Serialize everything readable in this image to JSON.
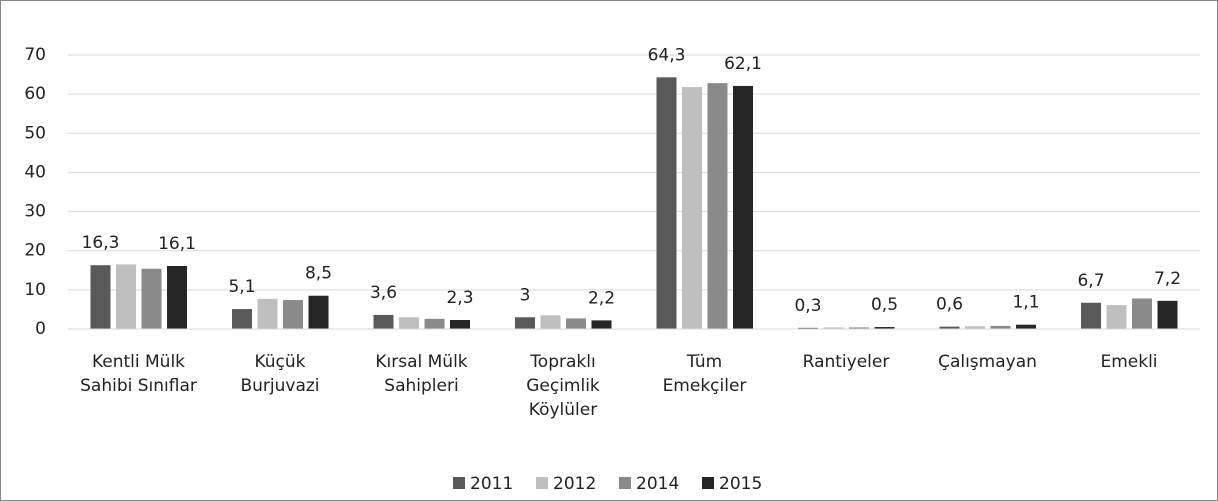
{
  "chart_data": {
    "type": "bar",
    "categories": [
      "Kentli Mülk\nSahibi Sınıflar",
      "Küçük\nBurjuvazi",
      "Kırsal Mülk\nSahipleri",
      "Topraklı\nGeçimlik\nKöylüler",
      "Tüm\nEmekçiler",
      "Rantiyeler",
      "Çalışmayan",
      "Emekli"
    ],
    "series": [
      {
        "name": "2011",
        "color": "#595959",
        "values": [
          16.3,
          5.1,
          3.6,
          3,
          64.3,
          0.3,
          0.6,
          6.7
        ],
        "value_labels": [
          "16,3",
          "5,1",
          "3,6",
          "3",
          "64,3",
          "0,3",
          "0,6",
          "6,7"
        ]
      },
      {
        "name": "2012",
        "color": "#bfbfbf",
        "values": [
          16.5,
          7.7,
          3.0,
          3.5,
          61.8,
          0.4,
          0.7,
          6.1
        ]
      },
      {
        "name": "2014",
        "color": "#8a8a8a",
        "values": [
          15.4,
          7.4,
          2.6,
          2.7,
          62.8,
          0.4,
          0.8,
          7.8
        ]
      },
      {
        "name": "2015",
        "color": "#262626",
        "values": [
          16.1,
          8.5,
          2.3,
          2.2,
          62.1,
          0.5,
          1.1,
          7.2
        ],
        "value_labels": [
          "16,1",
          "8,5",
          "2,3",
          "2,2",
          "62,1",
          "0,5",
          "1,1",
          "7,2"
        ]
      }
    ],
    "ylim": [
      0,
      70
    ],
    "yticks": [
      0,
      10,
      20,
      30,
      40,
      50,
      60,
      70
    ],
    "grid": true,
    "legend": "bottom"
  }
}
